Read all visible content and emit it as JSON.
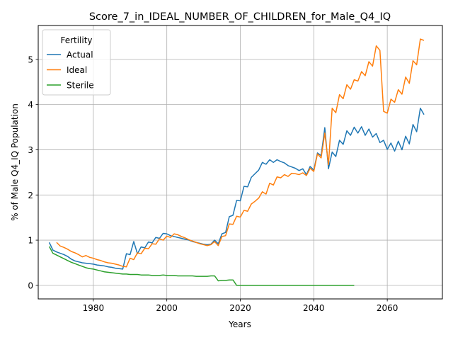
{
  "chart_data": {
    "type": "line",
    "title": "Score_7_in_IDEAL_NUMBER_OF_CHILDREN_for_Male_Q4_IQ",
    "xlabel": "Years",
    "ylabel": "% of Male Q4_IQ Population",
    "xlim": [
      1965,
      2075
    ],
    "ylim": [
      -0.3,
      5.75
    ],
    "xticks": [
      1980,
      2000,
      2020,
      2040,
      2060
    ],
    "yticks": [
      0,
      1,
      2,
      3,
      4,
      5
    ],
    "grid": true,
    "legend": {
      "title": "Fertility",
      "position": "upper-left"
    },
    "series": [
      {
        "name": "Actual",
        "color": "#1f77b4",
        "points": [
          [
            1968,
            0.95
          ],
          [
            1969,
            0.78
          ],
          [
            1970,
            0.74
          ],
          [
            1971,
            0.71
          ],
          [
            1972,
            0.68
          ],
          [
            1973,
            0.64
          ],
          [
            1974,
            0.58
          ],
          [
            1975,
            0.54
          ],
          [
            1976,
            0.52
          ],
          [
            1977,
            0.5
          ],
          [
            1978,
            0.49
          ],
          [
            1979,
            0.48
          ],
          [
            1980,
            0.47
          ],
          [
            1981,
            0.45
          ],
          [
            1982,
            0.44
          ],
          [
            1983,
            0.43
          ],
          [
            1984,
            0.41
          ],
          [
            1985,
            0.4
          ],
          [
            1986,
            0.38
          ],
          [
            1987,
            0.37
          ],
          [
            1988,
            0.36
          ],
          [
            1989,
            0.7
          ],
          [
            1990,
            0.68
          ],
          [
            1991,
            0.97
          ],
          [
            1992,
            0.7
          ],
          [
            1993,
            0.85
          ],
          [
            1994,
            0.83
          ],
          [
            1995,
            0.96
          ],
          [
            1996,
            0.94
          ],
          [
            1997,
            1.06
          ],
          [
            1998,
            1.04
          ],
          [
            1999,
            1.15
          ],
          [
            2000,
            1.14
          ],
          [
            2001,
            1.1
          ],
          [
            2002,
            1.08
          ],
          [
            2003,
            1.06
          ],
          [
            2004,
            1.04
          ],
          [
            2005,
            1.02
          ],
          [
            2006,
            1.0
          ],
          [
            2007,
            0.97
          ],
          [
            2008,
            0.95
          ],
          [
            2009,
            0.93
          ],
          [
            2010,
            0.91
          ],
          [
            2011,
            0.9
          ],
          [
            2012,
            0.91
          ],
          [
            2013,
            1.0
          ],
          [
            2014,
            0.92
          ],
          [
            2015,
            1.14
          ],
          [
            2016,
            1.17
          ],
          [
            2017,
            1.52
          ],
          [
            2018,
            1.55
          ],
          [
            2019,
            1.88
          ],
          [
            2020,
            1.87
          ],
          [
            2021,
            2.19
          ],
          [
            2022,
            2.18
          ],
          [
            2023,
            2.39
          ],
          [
            2024,
            2.47
          ],
          [
            2025,
            2.55
          ],
          [
            2026,
            2.72
          ],
          [
            2027,
            2.68
          ],
          [
            2028,
            2.78
          ],
          [
            2029,
            2.72
          ],
          [
            2030,
            2.78
          ],
          [
            2031,
            2.74
          ],
          [
            2032,
            2.71
          ],
          [
            2033,
            2.65
          ],
          [
            2034,
            2.62
          ],
          [
            2035,
            2.59
          ],
          [
            2036,
            2.54
          ],
          [
            2037,
            2.58
          ],
          [
            2038,
            2.45
          ],
          [
            2039,
            2.63
          ],
          [
            2040,
            2.55
          ],
          [
            2041,
            2.93
          ],
          [
            2042,
            2.87
          ],
          [
            2043,
            3.49
          ],
          [
            2044,
            2.58
          ],
          [
            2045,
            2.95
          ],
          [
            2046,
            2.85
          ],
          [
            2047,
            3.21
          ],
          [
            2048,
            3.12
          ],
          [
            2049,
            3.42
          ],
          [
            2050,
            3.32
          ],
          [
            2051,
            3.5
          ],
          [
            2052,
            3.37
          ],
          [
            2053,
            3.51
          ],
          [
            2054,
            3.32
          ],
          [
            2055,
            3.46
          ],
          [
            2056,
            3.28
          ],
          [
            2057,
            3.36
          ],
          [
            2058,
            3.16
          ],
          [
            2059,
            3.21
          ],
          [
            2060,
            3.01
          ],
          [
            2061,
            3.15
          ],
          [
            2062,
            2.97
          ],
          [
            2063,
            3.19
          ],
          [
            2064,
            3.0
          ],
          [
            2065,
            3.3
          ],
          [
            2066,
            3.13
          ],
          [
            2067,
            3.56
          ],
          [
            2068,
            3.4
          ],
          [
            2069,
            3.92
          ],
          [
            2070,
            3.78
          ]
        ]
      },
      {
        "name": "Ideal",
        "color": "#ff7f0e",
        "points": [
          [
            1970,
            0.95
          ],
          [
            1971,
            0.87
          ],
          [
            1972,
            0.84
          ],
          [
            1973,
            0.8
          ],
          [
            1974,
            0.75
          ],
          [
            1975,
            0.72
          ],
          [
            1976,
            0.68
          ],
          [
            1977,
            0.63
          ],
          [
            1978,
            0.66
          ],
          [
            1979,
            0.62
          ],
          [
            1980,
            0.6
          ],
          [
            1981,
            0.57
          ],
          [
            1982,
            0.55
          ],
          [
            1983,
            0.52
          ],
          [
            1984,
            0.5
          ],
          [
            1985,
            0.49
          ],
          [
            1986,
            0.47
          ],
          [
            1987,
            0.45
          ],
          [
            1988,
            0.42
          ],
          [
            1989,
            0.41
          ],
          [
            1990,
            0.6
          ],
          [
            1991,
            0.57
          ],
          [
            1992,
            0.72
          ],
          [
            1993,
            0.7
          ],
          [
            1994,
            0.82
          ],
          [
            1995,
            0.81
          ],
          [
            1996,
            0.92
          ],
          [
            1997,
            0.91
          ],
          [
            1998,
            1.03
          ],
          [
            1999,
            1.0
          ],
          [
            2000,
            1.09
          ],
          [
            2001,
            1.06
          ],
          [
            2002,
            1.14
          ],
          [
            2003,
            1.12
          ],
          [
            2004,
            1.08
          ],
          [
            2005,
            1.05
          ],
          [
            2006,
            1.01
          ],
          [
            2007,
            0.98
          ],
          [
            2008,
            0.95
          ],
          [
            2009,
            0.92
          ],
          [
            2010,
            0.9
          ],
          [
            2011,
            0.88
          ],
          [
            2012,
            0.9
          ],
          [
            2013,
            0.97
          ],
          [
            2014,
            0.88
          ],
          [
            2015,
            1.08
          ],
          [
            2016,
            1.1
          ],
          [
            2017,
            1.36
          ],
          [
            2018,
            1.35
          ],
          [
            2019,
            1.53
          ],
          [
            2020,
            1.51
          ],
          [
            2021,
            1.66
          ],
          [
            2022,
            1.64
          ],
          [
            2023,
            1.8
          ],
          [
            2024,
            1.86
          ],
          [
            2025,
            1.93
          ],
          [
            2026,
            2.07
          ],
          [
            2027,
            2.02
          ],
          [
            2028,
            2.26
          ],
          [
            2029,
            2.22
          ],
          [
            2030,
            2.4
          ],
          [
            2031,
            2.38
          ],
          [
            2032,
            2.45
          ],
          [
            2033,
            2.41
          ],
          [
            2034,
            2.48
          ],
          [
            2035,
            2.47
          ],
          [
            2036,
            2.45
          ],
          [
            2037,
            2.49
          ],
          [
            2038,
            2.43
          ],
          [
            2039,
            2.59
          ],
          [
            2040,
            2.52
          ],
          [
            2041,
            2.91
          ],
          [
            2042,
            2.82
          ],
          [
            2043,
            3.37
          ],
          [
            2044,
            2.67
          ],
          [
            2045,
            3.92
          ],
          [
            2046,
            3.82
          ],
          [
            2047,
            4.22
          ],
          [
            2048,
            4.13
          ],
          [
            2049,
            4.44
          ],
          [
            2050,
            4.34
          ],
          [
            2051,
            4.55
          ],
          [
            2052,
            4.52
          ],
          [
            2053,
            4.73
          ],
          [
            2054,
            4.64
          ],
          [
            2055,
            4.95
          ],
          [
            2056,
            4.85
          ],
          [
            2057,
            5.3
          ],
          [
            2058,
            5.2
          ],
          [
            2059,
            3.85
          ],
          [
            2060,
            3.81
          ],
          [
            2061,
            4.12
          ],
          [
            2062,
            4.05
          ],
          [
            2063,
            4.33
          ],
          [
            2064,
            4.23
          ],
          [
            2065,
            4.61
          ],
          [
            2066,
            4.47
          ],
          [
            2067,
            4.97
          ],
          [
            2068,
            4.88
          ],
          [
            2069,
            5.45
          ],
          [
            2070,
            5.42
          ]
        ]
      },
      {
        "name": "Sterile",
        "color": "#2ca02c",
        "points": [
          [
            1968,
            0.86
          ],
          [
            1969,
            0.71
          ],
          [
            1970,
            0.67
          ],
          [
            1971,
            0.63
          ],
          [
            1972,
            0.59
          ],
          [
            1973,
            0.55
          ],
          [
            1974,
            0.51
          ],
          [
            1975,
            0.48
          ],
          [
            1976,
            0.45
          ],
          [
            1977,
            0.42
          ],
          [
            1978,
            0.39
          ],
          [
            1979,
            0.37
          ],
          [
            1980,
            0.36
          ],
          [
            1981,
            0.34
          ],
          [
            1982,
            0.32
          ],
          [
            1983,
            0.3
          ],
          [
            1984,
            0.29
          ],
          [
            1985,
            0.28
          ],
          [
            1986,
            0.27
          ],
          [
            1987,
            0.26
          ],
          [
            1988,
            0.25
          ],
          [
            1989,
            0.25
          ],
          [
            1990,
            0.24
          ],
          [
            1991,
            0.24
          ],
          [
            1992,
            0.24
          ],
          [
            1993,
            0.23
          ],
          [
            1994,
            0.23
          ],
          [
            1995,
            0.23
          ],
          [
            1996,
            0.22
          ],
          [
            1997,
            0.22
          ],
          [
            1998,
            0.22
          ],
          [
            1999,
            0.23
          ],
          [
            2000,
            0.22
          ],
          [
            2001,
            0.22
          ],
          [
            2002,
            0.22
          ],
          [
            2003,
            0.21
          ],
          [
            2004,
            0.21
          ],
          [
            2005,
            0.21
          ],
          [
            2006,
            0.21
          ],
          [
            2007,
            0.21
          ],
          [
            2008,
            0.2
          ],
          [
            2009,
            0.2
          ],
          [
            2010,
            0.2
          ],
          [
            2011,
            0.2
          ],
          [
            2012,
            0.21
          ],
          [
            2013,
            0.21
          ],
          [
            2014,
            0.1
          ],
          [
            2015,
            0.11
          ],
          [
            2016,
            0.11
          ],
          [
            2017,
            0.12
          ],
          [
            2018,
            0.12
          ],
          [
            2019,
            0.0
          ],
          [
            2020,
            0.0
          ],
          [
            2021,
            0.0
          ],
          [
            2022,
            0.0
          ],
          [
            2023,
            0.0
          ],
          [
            2024,
            0.0
          ],
          [
            2025,
            0.0
          ],
          [
            2026,
            0.0
          ],
          [
            2027,
            0.0
          ],
          [
            2028,
            0.0
          ],
          [
            2029,
            0.0
          ],
          [
            2030,
            0.0
          ],
          [
            2031,
            0.0
          ],
          [
            2032,
            0.0
          ],
          [
            2033,
            0.0
          ],
          [
            2034,
            0.0
          ],
          [
            2035,
            0.0
          ],
          [
            2036,
            0.0
          ],
          [
            2037,
            0.0
          ],
          [
            2038,
            0.0
          ],
          [
            2039,
            0.0
          ],
          [
            2040,
            0.0
          ],
          [
            2041,
            0.0
          ],
          [
            2042,
            0.0
          ],
          [
            2043,
            0.0
          ],
          [
            2044,
            0.0
          ],
          [
            2045,
            0.0
          ],
          [
            2046,
            0.0
          ],
          [
            2047,
            0.0
          ],
          [
            2048,
            0.0
          ],
          [
            2049,
            0.0
          ],
          [
            2050,
            0.0
          ],
          [
            2051,
            0.0
          ]
        ]
      }
    ]
  }
}
